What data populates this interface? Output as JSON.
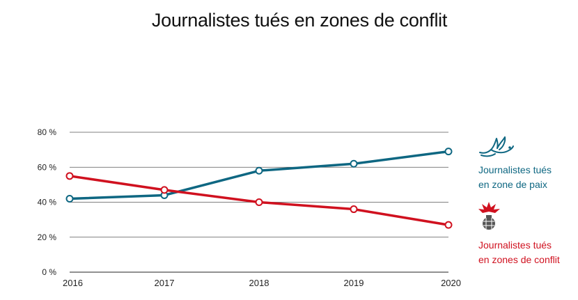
{
  "title": "Journalistes tués en zones de conflit",
  "colors": {
    "peace": "#0e6782",
    "conflict": "#d0111f",
    "grid": "#555555",
    "axis": "#222222"
  },
  "legend": {
    "peace": {
      "line1": "Journalistes tués",
      "line2": "en zone de paix",
      "icon": "dove-icon"
    },
    "conflict": {
      "line1": "Journalistes tués",
      "line2": "en zones de conflit",
      "icon": "explosion-grenade-icon"
    }
  },
  "chart_data": {
    "type": "line",
    "categories": [
      "2016",
      "2017",
      "2018",
      "2019",
      "2020"
    ],
    "yticks": [
      "0 %",
      "20 %",
      "40 %",
      "60 %",
      "80 %"
    ],
    "ylim": [
      0,
      80
    ],
    "grid": true,
    "series": [
      {
        "name": "Journalistes tués en zone de paix",
        "key": "peace",
        "values": [
          42,
          44,
          58,
          62,
          69
        ]
      },
      {
        "name": "Journalistes tués en zones de conflit",
        "key": "conflict",
        "values": [
          55,
          47,
          40,
          36,
          27
        ]
      }
    ]
  }
}
